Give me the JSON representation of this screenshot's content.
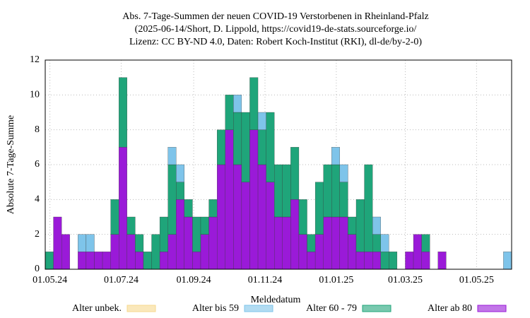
{
  "chart_data": {
    "type": "bar",
    "title": [
      "Abs. 7-Tage-Summen der neuen COVID-19 Verstorbenen in Rheinland-Pfalz",
      "(2025-06-14/Short, D. Lippold, https://covid19-de-stats.sourceforge.io/",
      "Lizenz: CC BY-ND 4.0, Daten: Robert Koch-Institut (RKI), dl-de/by-2-0)"
    ],
    "xlabel": "Meldedatum",
    "ylabel": "Absolute 7-Tage-Summe",
    "x": [
      "2024-04-27",
      "2024-05-04",
      "2024-05-11",
      "2024-05-18",
      "2024-05-25",
      "2024-06-01",
      "2024-06-08",
      "2024-06-15",
      "2024-06-22",
      "2024-06-29",
      "2024-07-06",
      "2024-07-13",
      "2024-07-20",
      "2024-07-27",
      "2024-08-03",
      "2024-08-10",
      "2024-08-17",
      "2024-08-24",
      "2024-08-31",
      "2024-09-07",
      "2024-09-14",
      "2024-09-21",
      "2024-09-28",
      "2024-10-05",
      "2024-10-12",
      "2024-10-19",
      "2024-10-26",
      "2024-11-02",
      "2024-11-09",
      "2024-11-16",
      "2024-11-23",
      "2024-11-30",
      "2024-12-07",
      "2024-12-14",
      "2024-12-21",
      "2024-12-28",
      "2025-01-04",
      "2025-01-11",
      "2025-01-18",
      "2025-01-25",
      "2025-02-01",
      "2025-02-08",
      "2025-02-15",
      "2025-02-22",
      "2025-03-01",
      "2025-03-08",
      "2025-03-15",
      "2025-03-22",
      "2025-03-29",
      "2025-04-05",
      "2025-04-12",
      "2025-04-19",
      "2025-04-26",
      "2025-05-03",
      "2025-05-10",
      "2025-05-17",
      "2025-05-24"
    ],
    "series": [
      {
        "name": "Alter unbek.",
        "color": "#f7d88e",
        "values": [
          0,
          0,
          0,
          0,
          0,
          0,
          0,
          0,
          0,
          0,
          0,
          0,
          0,
          0,
          0,
          0,
          0,
          0,
          0,
          0,
          0,
          0,
          0,
          0,
          0,
          0,
          0,
          0,
          0,
          0,
          0,
          0,
          0,
          0,
          0,
          0,
          0,
          0,
          0,
          0,
          0,
          0,
          0,
          0,
          0,
          0,
          0,
          0,
          0,
          0,
          0,
          0,
          0,
          0,
          0,
          0,
          0
        ]
      },
      {
        "name": "Alter bis 59",
        "color": "#7ec4ea",
        "values": [
          0,
          0,
          0,
          0,
          1,
          1,
          0,
          0,
          0,
          0,
          0,
          0,
          0,
          0,
          0,
          1,
          1,
          0,
          0,
          0,
          0,
          0,
          0,
          1,
          0,
          0,
          1,
          0,
          0,
          0,
          0,
          0,
          0,
          0,
          0,
          1,
          1,
          0,
          0,
          0,
          1,
          1,
          0,
          0,
          0,
          0,
          0,
          0,
          0,
          0,
          0,
          0,
          0,
          0,
          0,
          0,
          1
        ]
      },
      {
        "name": "Alter 60 - 79",
        "color": "#1fa57a",
        "values": [
          1,
          0,
          0,
          0,
          0,
          0,
          0,
          0,
          2,
          4,
          1,
          1,
          1,
          2,
          2,
          4,
          1,
          1,
          2,
          1,
          1,
          2,
          2,
          3,
          4,
          3,
          2,
          4,
          3,
          3,
          3,
          2,
          1,
          3,
          3,
          3,
          2,
          1,
          3,
          5,
          1,
          1,
          1,
          0,
          0,
          0,
          1,
          0,
          0,
          0,
          0,
          0,
          0,
          0,
          0,
          0,
          0
        ]
      },
      {
        "name": "Alter ab 80",
        "color": "#9a1ad8",
        "values": [
          0,
          3,
          2,
          0,
          1,
          1,
          1,
          1,
          2,
          7,
          2,
          1,
          0,
          0,
          1,
          2,
          4,
          3,
          1,
          2,
          3,
          6,
          8,
          6,
          5,
          8,
          6,
          5,
          3,
          3,
          4,
          2,
          1,
          2,
          3,
          3,
          3,
          2,
          1,
          1,
          1,
          0,
          0,
          0,
          1,
          2,
          1,
          0,
          1,
          0,
          0,
          0,
          0,
          0,
          0,
          0,
          0
        ]
      }
    ],
    "bar_days": 7,
    "xlim": [
      "2024-04-27",
      "2025-05-31"
    ],
    "xticks": [
      {
        "value": "2024-05-01",
        "label": "01.05.24"
      },
      {
        "value": "2024-07-01",
        "label": "01.07.24"
      },
      {
        "value": "2024-09-01",
        "label": "01.09.24"
      },
      {
        "value": "2024-11-01",
        "label": "01.11.24"
      },
      {
        "value": "2025-01-01",
        "label": "01.01.25"
      },
      {
        "value": "2025-03-01",
        "label": "01.03.25"
      },
      {
        "value": "2025-05-01",
        "label": "01.05.25"
      }
    ],
    "ylim": [
      0,
      12
    ],
    "yticks": [
      0,
      2,
      4,
      6,
      8,
      10,
      12
    ],
    "grid": true
  }
}
